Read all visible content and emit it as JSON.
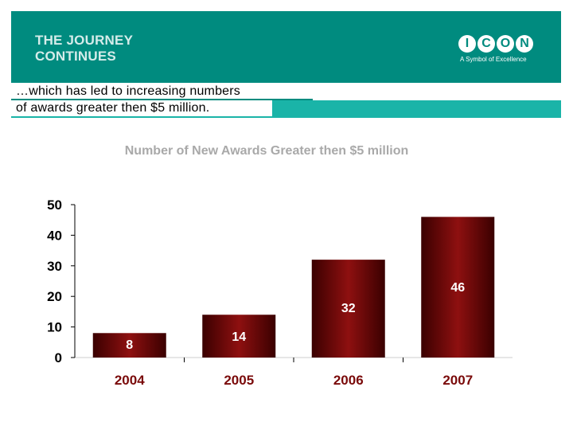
{
  "banner": {
    "title_line1": "THE JOURNEY",
    "title_line2": "CONTINUES",
    "color": "#008b7f"
  },
  "logo": {
    "letters": [
      "I",
      "C",
      "O",
      "N"
    ],
    "tagline": "A Symbol of Excellence"
  },
  "subtitle": {
    "line1": "…which has led to increasing numbers",
    "line2": "of awards greater then $5 million."
  },
  "chart_data": {
    "type": "bar",
    "title": "Number of New Awards Greater then $5 million",
    "categories": [
      "2004",
      "2005",
      "2006",
      "2007"
    ],
    "values": [
      8,
      14,
      32,
      46
    ],
    "ylim": [
      0,
      50
    ],
    "yticks": [
      0,
      10,
      20,
      30,
      40,
      50
    ],
    "xlabel": "",
    "ylabel": "",
    "grid": false,
    "legend": "none",
    "bar_color": "#7a0a0a",
    "label_color": "#7a0a0a"
  }
}
